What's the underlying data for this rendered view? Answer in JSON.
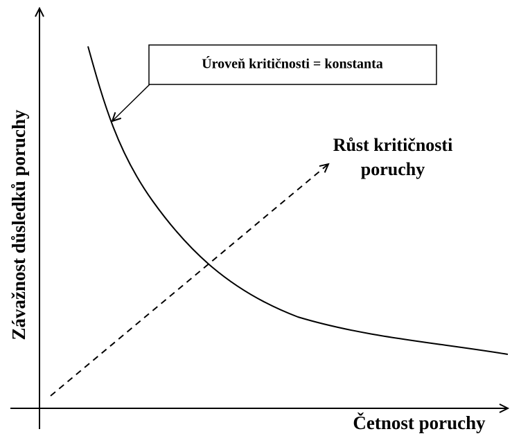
{
  "y_axis_label": "Závažnost důsledků poruchy",
  "x_axis_label": "Četnost poruchy",
  "callout": "Úroveň kritičnosti = konstanta",
  "trend_label": [
    "Růst kritičnosti",
    "poruchy"
  ]
}
